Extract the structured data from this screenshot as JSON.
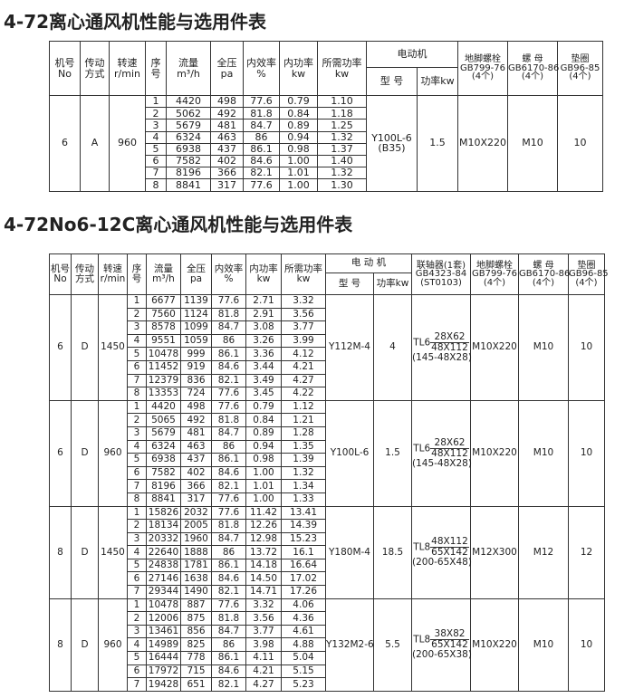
{
  "table1": {
    "title": "4-72离心通风机性能与选用件表",
    "headers": {
      "machine_no": [
        "机号",
        "No"
      ],
      "drive": [
        "传动",
        "方式"
      ],
      "speed": [
        "转速",
        "r/min"
      ],
      "seq": [
        "序",
        "号"
      ],
      "flow": [
        "流量",
        "m³/h"
      ],
      "pressure": [
        "全压",
        "pa"
      ],
      "efficiency": [
        "内效率",
        "%"
      ],
      "inner_power": [
        "内功率",
        "kw"
      ],
      "required_power": [
        "所需功率",
        "kw"
      ],
      "motor": "电动机",
      "motor_model": "型 号",
      "motor_power": "功率kw",
      "bolt": [
        "地脚螺栓",
        "GB799-76",
        "(4个)"
      ],
      "nut": [
        "螺 母",
        "GB6170-86",
        "(4个)"
      ],
      "washer": [
        "垫圈",
        "GB96-85",
        "(4个)"
      ]
    },
    "groups": [
      {
        "machine_no": "6",
        "drive": "A",
        "speed": "960",
        "motor_model": "Y100L-6",
        "motor_model_note": "(B35)",
        "motor_power": "1.5",
        "bolt": "M10X220",
        "nut": "M10",
        "washer": "10",
        "rows": [
          [
            "1",
            "4420",
            "498",
            "77.6",
            "0.79",
            "1.10"
          ],
          [
            "2",
            "5062",
            "492",
            "81.8",
            "0.84",
            "1.18"
          ],
          [
            "3",
            "5679",
            "481",
            "84.7",
            "0.89",
            "1.25"
          ],
          [
            "4",
            "6324",
            "463",
            "86",
            "0.94",
            "1.32"
          ],
          [
            "5",
            "6938",
            "437",
            "86.1",
            "0.98",
            "1.37"
          ],
          [
            "6",
            "7582",
            "402",
            "84.6",
            "1.00",
            "1.40"
          ],
          [
            "7",
            "8196",
            "366",
            "82.1",
            "1.01",
            "1.32"
          ],
          [
            "8",
            "8841",
            "317",
            "77.6",
            "1.00",
            "1.30"
          ]
        ]
      }
    ]
  },
  "table2": {
    "title": "4-72No6-12C离心通风机性能与选用件表",
    "headers": {
      "machine_no": [
        "机号",
        "No"
      ],
      "drive": [
        "传动",
        "方式"
      ],
      "speed": [
        "转速",
        "r/min"
      ],
      "seq": [
        "序",
        "号"
      ],
      "flow": [
        "流量",
        "m³/h"
      ],
      "pressure": [
        "全压",
        "pa"
      ],
      "efficiency": [
        "内效率",
        "%"
      ],
      "inner_power": [
        "内功率",
        "kw"
      ],
      "required_power": [
        "所需功率",
        "kw"
      ],
      "motor": "电 动 机",
      "motor_model": "型 号",
      "motor_power": "功率kw",
      "coupling": [
        "联轴器(1套)",
        "GB4323-84",
        "(ST0103)"
      ],
      "bolt": [
        "地脚螺栓",
        "GB799-76",
        "(4个)"
      ],
      "nut": [
        "螺 母",
        "GB6170-86",
        "(4个)"
      ],
      "washer": [
        "垫圈",
        "GB96-85",
        "(4个)"
      ]
    },
    "groups": [
      {
        "machine_no": "6",
        "drive": "D",
        "speed": "1450",
        "motor_model": "Y112M-4",
        "motor_power": "4",
        "coupling": {
          "prefix": "TL6",
          "numerator": "28X62",
          "denominator": "48X112",
          "note": "(145-48X28)"
        },
        "bolt": "M10X220",
        "nut": "M10",
        "washer": "10",
        "rows": [
          [
            "1",
            "6677",
            "1139",
            "77.6",
            "2.71",
            "3.32"
          ],
          [
            "2",
            "7560",
            "1124",
            "81.8",
            "2.91",
            "3.56"
          ],
          [
            "3",
            "8578",
            "1099",
            "84.7",
            "3.08",
            "3.77"
          ],
          [
            "4",
            "9551",
            "1059",
            "86",
            "3.26",
            "3.99"
          ],
          [
            "5",
            "10478",
            "999",
            "86.1",
            "3.36",
            "4.12"
          ],
          [
            "6",
            "11452",
            "919",
            "84.6",
            "3.44",
            "4.21"
          ],
          [
            "7",
            "12379",
            "836",
            "82.1",
            "3.49",
            "4.27"
          ],
          [
            "8",
            "13353",
            "724",
            "77.6",
            "3.45",
            "4.22"
          ]
        ]
      },
      {
        "machine_no": "6",
        "drive": "D",
        "speed": "960",
        "motor_model": "Y100L-6",
        "motor_power": "1.5",
        "coupling": {
          "prefix": "TL6",
          "numerator": "28X62",
          "denominator": "48X112",
          "note": "(145-48X28)"
        },
        "bolt": "M10X220",
        "nut": "M10",
        "washer": "10",
        "rows": [
          [
            "1",
            "4420",
            "498",
            "77.6",
            "0.79",
            "1.12"
          ],
          [
            "2",
            "5065",
            "492",
            "81.8",
            "0.84",
            "1.21"
          ],
          [
            "3",
            "5679",
            "481",
            "84.7",
            "0.89",
            "1.28"
          ],
          [
            "4",
            "6324",
            "463",
            "86",
            "0.94",
            "1.35"
          ],
          [
            "5",
            "6938",
            "437",
            "86.1",
            "0.98",
            "1.39"
          ],
          [
            "6",
            "7582",
            "402",
            "84.6",
            "1.00",
            "1.32"
          ],
          [
            "7",
            "8196",
            "366",
            "82.1",
            "1.01",
            "1.34"
          ],
          [
            "8",
            "8841",
            "317",
            "77.6",
            "1.00",
            "1.33"
          ]
        ]
      },
      {
        "machine_no": "8",
        "drive": "D",
        "speed": "1450",
        "motor_model": "Y180M-4",
        "motor_power": "18.5",
        "coupling": {
          "prefix": "TL8",
          "numerator": "48X112",
          "denominator": "65X142",
          "note": "(200-65X48)"
        },
        "bolt": "M12X300",
        "nut": "M12",
        "washer": "12",
        "rows": [
          [
            "1",
            "15826",
            "2032",
            "77.6",
            "11.42",
            "13.41"
          ],
          [
            "2",
            "18134",
            "2005",
            "81.8",
            "12.26",
            "14.39"
          ],
          [
            "3",
            "20332",
            "1960",
            "84.7",
            "12.98",
            "15.23"
          ],
          [
            "4",
            "22640",
            "1888",
            "86",
            "13.72",
            "16.1"
          ],
          [
            "5",
            "24838",
            "1781",
            "86.1",
            "14.18",
            "16.64"
          ],
          [
            "6",
            "27146",
            "1638",
            "84.6",
            "14.50",
            "17.02"
          ],
          [
            "7",
            "29344",
            "1490",
            "82.1",
            "14.71",
            "17.26"
          ]
        ]
      },
      {
        "machine_no": "8",
        "drive": "D",
        "speed": "960",
        "motor_model": "Y132M2-6",
        "motor_power": "5.5",
        "coupling": {
          "prefix": "TL8",
          "numerator": "38X82",
          "denominator": "65X142",
          "note": "(200-65X38)"
        },
        "bolt": "M10X220",
        "nut": "M10",
        "washer": "10",
        "rows": [
          [
            "1",
            "10478",
            "887",
            "77.6",
            "3.32",
            "4.06"
          ],
          [
            "2",
            "12006",
            "875",
            "81.8",
            "3.56",
            "4.36"
          ],
          [
            "3",
            "13461",
            "856",
            "84.7",
            "3.77",
            "4.61"
          ],
          [
            "4",
            "14989",
            "825",
            "86",
            "3.98",
            "4.88"
          ],
          [
            "5",
            "16444",
            "778",
            "86.1",
            "4.11",
            "5.04"
          ],
          [
            "6",
            "17972",
            "715",
            "84.6",
            "4.21",
            "5.15"
          ],
          [
            "7",
            "19428",
            "651",
            "82.1",
            "4.27",
            "5.23"
          ]
        ]
      }
    ]
  }
}
